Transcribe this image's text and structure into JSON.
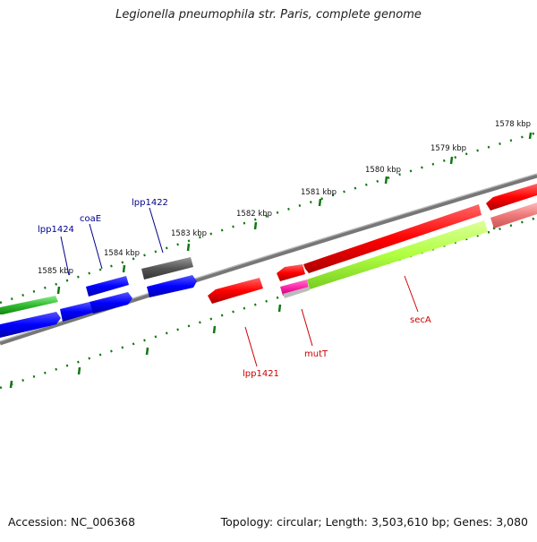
{
  "title": "Legionella pneumophila str. Paris, complete genome",
  "footer": {
    "accession": "Accession: NC_006368",
    "summary": "Topology: circular; Length: 3,503,610 bp; Genes: 3,080"
  },
  "ruler_ticks": [
    {
      "label": "1578 kbp"
    },
    {
      "label": "1579 kbp"
    },
    {
      "label": "1580 kbp"
    },
    {
      "label": "1581 kbp"
    },
    {
      "label": "1582 kbp"
    },
    {
      "label": "1583 kbp"
    },
    {
      "label": "1584 kbp"
    },
    {
      "label": "1585 kbp"
    }
  ],
  "gene_labels": [
    {
      "text": "lpp1424",
      "color": "#00008b"
    },
    {
      "text": "coaE",
      "color": "#00008b"
    },
    {
      "text": "lpp1422",
      "color": "#00008b"
    },
    {
      "text": "lpp1421",
      "color": "#cc0000"
    },
    {
      "text": "mutT",
      "color": "#cc0000"
    },
    {
      "text": "secA",
      "color": "#cc0000"
    }
  ],
  "colors": {
    "forward_strand": "#0000ff",
    "reverse_strand": "#ff0000",
    "secA_highlight": "#b0ff40",
    "gray_gene": "#555555",
    "green_gene": "#33bb33",
    "magenta_gene": "#ff22aa",
    "tick_green": "#117711",
    "backbone": "#777777"
  }
}
